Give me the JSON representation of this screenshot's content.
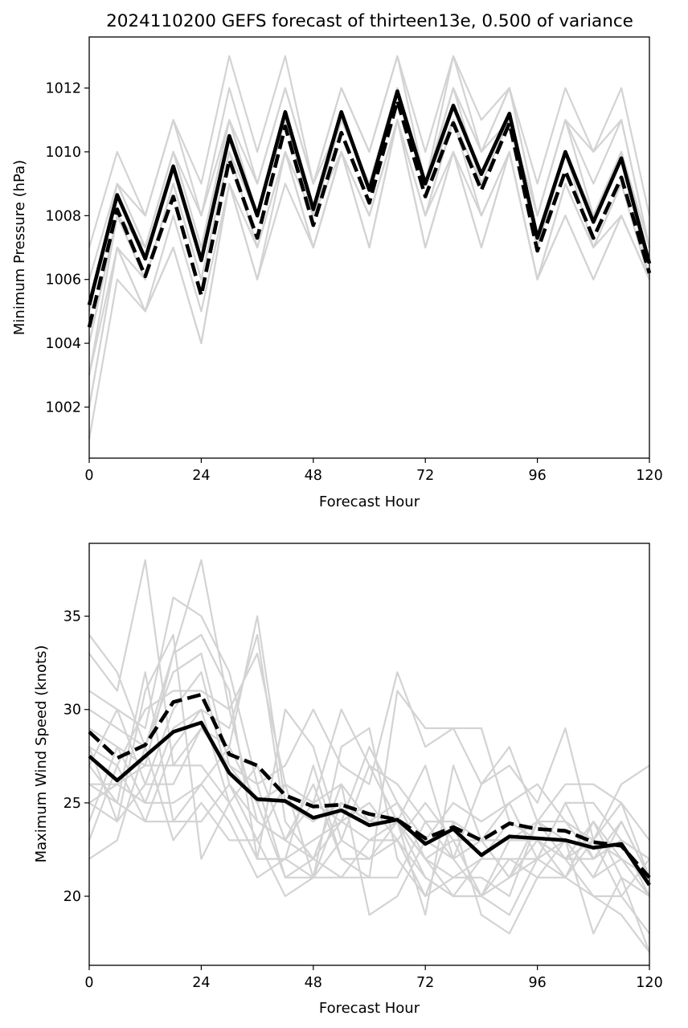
{
  "figure": {
    "title": "2024110200 GEFS forecast of thirteen13e, 0.500 of variance"
  },
  "chart_data": [
    {
      "type": "line",
      "xlabel": "Forecast Hour",
      "ylabel": "Minimum Pressure (hPa)",
      "xlim": [
        0,
        120
      ],
      "ylim": [
        1000.4,
        1013.6
      ],
      "x_ticks": [
        0,
        24,
        48,
        72,
        96,
        120
      ],
      "y_ticks": [
        1002,
        1004,
        1006,
        1008,
        1010,
        1012
      ],
      "grid": false,
      "x": [
        0,
        6,
        12,
        18,
        24,
        30,
        36,
        42,
        48,
        54,
        60,
        66,
        72,
        78,
        84,
        90,
        96,
        102,
        108,
        114,
        120
      ],
      "members": [
        [
          1007,
          1010,
          1008,
          1011,
          1009,
          1013,
          1010,
          1013,
          1009,
          1012,
          1010,
          1013,
          1010,
          1013,
          1011,
          1012,
          1009,
          1012,
          1010,
          1012,
          1008
        ],
        [
          1006,
          1009,
          1008,
          1011,
          1008,
          1012,
          1009,
          1012,
          1009,
          1012,
          1010,
          1013,
          1009,
          1013,
          1010,
          1012,
          1008,
          1011,
          1010,
          1011,
          1007
        ],
        [
          1005,
          1009,
          1007,
          1010,
          1008,
          1011,
          1009,
          1012,
          1009,
          1011,
          1009,
          1012,
          1009,
          1012,
          1010,
          1012,
          1008,
          1011,
          1009,
          1011,
          1007
        ],
        [
          1005,
          1009,
          1007,
          1010,
          1007,
          1011,
          1008,
          1011,
          1008,
          1011,
          1009,
          1012,
          1009,
          1012,
          1010,
          1011,
          1008,
          1011,
          1008,
          1010,
          1007
        ],
        [
          1004,
          1008,
          1007,
          1010,
          1007,
          1011,
          1008,
          1011,
          1008,
          1011,
          1009,
          1012,
          1009,
          1012,
          1009,
          1011,
          1007,
          1010,
          1008,
          1010,
          1007
        ],
        [
          1004,
          1008,
          1006,
          1009,
          1006,
          1010,
          1008,
          1011,
          1008,
          1011,
          1009,
          1012,
          1009,
          1011,
          1009,
          1011,
          1007,
          1010,
          1008,
          1010,
          1006
        ],
        [
          1003,
          1008,
          1006,
          1009,
          1006,
          1010,
          1007,
          1010,
          1008,
          1010,
          1008,
          1011,
          1008,
          1011,
          1009,
          1011,
          1007,
          1010,
          1007,
          1009,
          1006
        ],
        [
          1003,
          1007,
          1006,
          1009,
          1006,
          1010,
          1007,
          1010,
          1007,
          1010,
          1008,
          1011,
          1008,
          1011,
          1008,
          1010,
          1006,
          1009,
          1007,
          1009,
          1006
        ],
        [
          1002,
          1007,
          1005,
          1008,
          1005,
          1009,
          1007,
          1010,
          1007,
          1010,
          1008,
          1011,
          1008,
          1010,
          1008,
          1010,
          1006,
          1009,
          1007,
          1008,
          1006
        ],
        [
          1002,
          1007,
          1005,
          1007,
          1004,
          1009,
          1006,
          1010,
          1007,
          1010,
          1007,
          1011,
          1007,
          1010,
          1007,
          1010,
          1006,
          1008,
          1006,
          1008,
          1006
        ],
        [
          1001,
          1006,
          1005,
          1007,
          1004,
          1009,
          1006,
          1009,
          1007,
          1010,
          1007,
          1011,
          1007,
          1010,
          1007,
          1010,
          1006,
          1008,
          1006,
          1008,
          1006
        ]
      ],
      "series": [
        {
          "style": "solid",
          "values": [
            1005.2,
            1008.65,
            1006.65,
            1009.55,
            1006.6,
            1010.5,
            1008.0,
            1011.25,
            1008.2,
            1011.25,
            1008.8,
            1011.9,
            1009.0,
            1011.45,
            1009.3,
            1011.2,
            1007.3,
            1010.0,
            1007.8,
            1009.8,
            1006.5
          ]
        },
        {
          "style": "dashed",
          "values": [
            1004.5,
            1008.2,
            1006.1,
            1008.6,
            1005.5,
            1009.75,
            1007.3,
            1010.8,
            1007.7,
            1010.6,
            1008.4,
            1011.6,
            1008.6,
            1010.9,
            1008.8,
            1010.9,
            1006.9,
            1009.4,
            1007.3,
            1009.2,
            1006.2
          ]
        }
      ],
      "colors": {
        "members": "#d3d3d3",
        "series": "#000000"
      }
    },
    {
      "type": "line",
      "xlabel": "Forecast Hour",
      "ylabel": "Maximum Wind Speed (knots)",
      "xlim": [
        0,
        120
      ],
      "ylim": [
        16.3,
        38.9
      ],
      "x_ticks": [
        0,
        24,
        48,
        72,
        96,
        120
      ],
      "y_ticks": [
        20,
        25,
        30,
        35
      ],
      "grid": false,
      "x": [
        0,
        6,
        12,
        18,
        24,
        30,
        36,
        42,
        48,
        54,
        60,
        66,
        72,
        78,
        84,
        90,
        96,
        102,
        108,
        114,
        120
      ],
      "members": [
        [
          34,
          32,
          28,
          33,
          38,
          30,
          33,
          26,
          25,
          24,
          23,
          24,
          22,
          21,
          22,
          24,
          23,
          22,
          22,
          23,
          22
        ],
        [
          33,
          31,
          38,
          27,
          29,
          28,
          35,
          25,
          24,
          25,
          24,
          25,
          23,
          22,
          23,
          25,
          22,
          23,
          21,
          22,
          21
        ],
        [
          31,
          30,
          29,
          36,
          35,
          32,
          26,
          27,
          30,
          27,
          26,
          32,
          28,
          29,
          29,
          24,
          23,
          22,
          24,
          21,
          20
        ],
        [
          30,
          29,
          28,
          32,
          33,
          27,
          25,
          26,
          25,
          30,
          27,
          26,
          24,
          22,
          26,
          28,
          24,
          26,
          26,
          25,
          23
        ],
        [
          29,
          28,
          27,
          33,
          34,
          31,
          22,
          30,
          28,
          23,
          22,
          24,
          27,
          22,
          20,
          19,
          22,
          25,
          22,
          24,
          21
        ],
        [
          28,
          27,
          30,
          31,
          31,
          30,
          24,
          23,
          26,
          22,
          21,
          31,
          29,
          29,
          26,
          27,
          25,
          29,
          23,
          26,
          27
        ],
        [
          27,
          30,
          26,
          30,
          32,
          26,
          23,
          26,
          21,
          28,
          29,
          22,
          20,
          21,
          21,
          20,
          24,
          22,
          23,
          20,
          18
        ],
        [
          26,
          26,
          25,
          29,
          30,
          29,
          34,
          24,
          22,
          26,
          19,
          20,
          23,
          25,
          24,
          25,
          26,
          24,
          23,
          25,
          21
        ],
        [
          26,
          25,
          24,
          28,
          30,
          25,
          22,
          22,
          27,
          22,
          22,
          23,
          25,
          23,
          20,
          23,
          23,
          21,
          23,
          22,
          20
        ],
        [
          25,
          24,
          26,
          26,
          29,
          27,
          26,
          21,
          22,
          24,
          25,
          23,
          20,
          24,
          19,
          18,
          21,
          23,
          21,
          24,
          21
        ],
        [
          25,
          26,
          27,
          27,
          27,
          25,
          27,
          23,
          22,
          21,
          21,
          21,
          24,
          24,
          23,
          21,
          24,
          24,
          22,
          23,
          22
        ],
        [
          24,
          28,
          25,
          25,
          26,
          28,
          25,
          21,
          21,
          21,
          23,
          23,
          21,
          20,
          22,
          22,
          22,
          25,
          25,
          23,
          20
        ],
        [
          23,
          27,
          24,
          24,
          26,
          24,
          21,
          22,
          21,
          25,
          24,
          24,
          22,
          20,
          20,
          22,
          21,
          21,
          20,
          20,
          22
        ],
        [
          22,
          23,
          28,
          23,
          25,
          23,
          23,
          20,
          21,
          23,
          27,
          24,
          21,
          20,
          20,
          21,
          23,
          22,
          20,
          19,
          17
        ],
        [
          27,
          25,
          32,
          24,
          24,
          26,
          24,
          23,
          25,
          26,
          24,
          24,
          19,
          27,
          23,
          21,
          22,
          21,
          24,
          22,
          20
        ],
        [
          28,
          24,
          31,
          34,
          22,
          25,
          22,
          22,
          23,
          24,
          28,
          25,
          22,
          23,
          23,
          23,
          24,
          23,
          18,
          21,
          17
        ]
      ],
      "series": [
        {
          "style": "solid",
          "values": [
            27.5,
            26.2,
            27.5,
            28.8,
            29.3,
            26.6,
            25.2,
            25.1,
            24.2,
            24.6,
            23.8,
            24.1,
            22.8,
            23.6,
            22.2,
            23.2,
            23.1,
            23.0,
            22.6,
            22.8,
            20.6
          ]
        },
        {
          "style": "dashed",
          "values": [
            28.8,
            27.4,
            28.1,
            30.4,
            30.8,
            27.6,
            27.0,
            25.4,
            24.8,
            24.9,
            24.4,
            24.1,
            23.1,
            23.7,
            23.0,
            23.9,
            23.6,
            23.5,
            22.9,
            22.7,
            21.0
          ]
        }
      ],
      "colors": {
        "members": "#d3d3d3",
        "series": "#000000"
      }
    }
  ]
}
